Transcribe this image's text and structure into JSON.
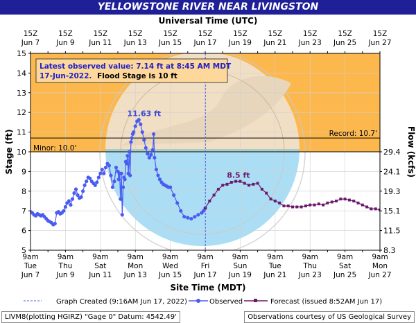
{
  "page": {
    "title": "YELLOWSTONE RIVER NEAR LIVINGSTON",
    "top_axis_title": "Universal Time (UTC)",
    "bottom_axis_title": "Site Time (MDT)",
    "left_axis_title": "Stage (ft)",
    "right_axis_title": "Flow (kcfs)",
    "footer_left": "LIVM8(plotting HGIRZ) \"Gage 0\" Datum: 4542.49'",
    "footer_right": "Observations courtesy of US Geological Survey"
  },
  "info_box": {
    "line1": "Latest observed value: 7.14 ft at 8:45 AM MDT",
    "line2_date": "17-Jun-2022.",
    "line2_rest": "Flood Stage is 10 ft"
  },
  "legend": {
    "created": "Graph Created (9:16AM Jun 17, 2022)",
    "observed": "Observed",
    "forecast": "Forecast (issued 8:52AM Jun 17)"
  },
  "colors": {
    "title_bg": "#1f1f97",
    "flood_zone": "#fdb84d",
    "observed": "#4a5cf0",
    "forecast": "#6b1a6b",
    "info_text": "#2020c8",
    "watermark_blue": "#8fd3f2"
  },
  "chart_data": {
    "type": "line",
    "x_unit": "days after Jun 7, 9am MDT",
    "xlim": [
      0,
      20
    ],
    "ylim": [
      5,
      15
    ],
    "y_ticks": [
      5,
      6,
      7,
      8,
      9,
      10,
      11,
      12,
      13,
      14,
      15
    ],
    "x_ticks_bottom": [
      {
        "x": 0,
        "time": "9am",
        "day": "Tue",
        "date": "Jun 7"
      },
      {
        "x": 2,
        "time": "9am",
        "day": "Thu",
        "date": "Jun 9"
      },
      {
        "x": 4,
        "time": "9am",
        "day": "Sat",
        "date": "Jun 11"
      },
      {
        "x": 6,
        "time": "9am",
        "day": "Mon",
        "date": "Jun 13"
      },
      {
        "x": 8,
        "time": "9am",
        "day": "Wed",
        "date": "Jun 15"
      },
      {
        "x": 10,
        "time": "9am",
        "day": "Fri",
        "date": "Jun 17"
      },
      {
        "x": 12,
        "time": "9am",
        "day": "Sun",
        "date": "Jun 19"
      },
      {
        "x": 14,
        "time": "9am",
        "day": "Tue",
        "date": "Jun 21"
      },
      {
        "x": 16,
        "time": "9am",
        "day": "Thu",
        "date": "Jun 23"
      },
      {
        "x": 18,
        "time": "9am",
        "day": "Sat",
        "date": "Jun 25"
      },
      {
        "x": 20,
        "time": "9am",
        "day": "Mon",
        "date": "Jun 27"
      }
    ],
    "x_ticks_top": [
      {
        "x": 0,
        "time": "15Z",
        "date": "Jun 7"
      },
      {
        "x": 2,
        "time": "15Z",
        "date": "Jun 9"
      },
      {
        "x": 4,
        "time": "15Z",
        "date": "Jun 11"
      },
      {
        "x": 6,
        "time": "15Z",
        "date": "Jun 13"
      },
      {
        "x": 8,
        "time": "15Z",
        "date": "Jun 15"
      },
      {
        "x": 10,
        "time": "15Z",
        "date": "Jun 17"
      },
      {
        "x": 12,
        "time": "15Z",
        "date": "Jun 19"
      },
      {
        "x": 14,
        "time": "15Z",
        "date": "Jun 21"
      },
      {
        "x": 16,
        "time": "15Z",
        "date": "Jun 23"
      },
      {
        "x": 18,
        "time": "15Z",
        "date": "Jun 25"
      },
      {
        "x": 20,
        "time": "15Z",
        "date": "Jun 27"
      }
    ],
    "flow_ticks": [
      {
        "stage": 10.0,
        "label": "29.4"
      },
      {
        "stage": 9.0,
        "label": "24.1"
      },
      {
        "stage": 8.0,
        "label": "19.3"
      },
      {
        "stage": 7.0,
        "label": "15.1"
      },
      {
        "stage": 6.0,
        "label": "11.5"
      },
      {
        "stage": 5.0,
        "label": "8.3"
      }
    ],
    "thresholds": [
      {
        "name": "Minor",
        "value": 10.0,
        "label": "Minor: 10.0'"
      },
      {
        "name": "Record",
        "value": 10.7,
        "label": "Record: 10.7'"
      }
    ],
    "annotations": [
      {
        "x": 6.5,
        "y": 11.63,
        "label": "11.63 ft",
        "series": "observed"
      },
      {
        "x": 11.9,
        "y": 8.5,
        "label": "8.5 ft",
        "series": "forecast"
      }
    ],
    "now_line_x": 10.01,
    "series": [
      {
        "name": "Observed",
        "x": [
          0.0,
          0.1,
          0.2,
          0.3,
          0.4,
          0.5,
          0.6,
          0.7,
          0.8,
          0.9,
          1.0,
          1.1,
          1.2,
          1.3,
          1.4,
          1.5,
          1.6,
          1.7,
          1.8,
          1.9,
          2.0,
          2.1,
          2.2,
          2.3,
          2.4,
          2.5,
          2.6,
          2.7,
          2.8,
          2.9,
          3.0,
          3.1,
          3.2,
          3.3,
          3.4,
          3.5,
          3.6,
          3.7,
          3.8,
          3.9,
          4.0,
          4.1,
          4.2,
          4.3,
          4.4,
          4.5,
          4.6,
          4.7,
          4.8,
          4.9,
          5.0,
          5.05,
          5.1,
          5.15,
          5.2,
          5.25,
          5.3,
          5.35,
          5.4,
          5.45,
          5.5,
          5.55,
          5.6,
          5.65,
          5.7,
          5.75,
          5.8,
          5.85,
          5.9,
          6.0,
          6.1,
          6.2,
          6.3,
          6.4,
          6.5,
          6.6,
          6.7,
          6.8,
          6.9,
          7.0,
          7.05,
          7.1,
          7.2,
          7.3,
          7.4,
          7.5,
          7.6,
          7.7,
          7.8,
          7.9,
          8.0,
          8.2,
          8.4,
          8.6,
          8.8,
          9.0,
          9.2,
          9.4,
          9.6,
          9.8,
          9.9,
          10.0
        ],
        "y": [
          6.95,
          6.9,
          6.8,
          6.75,
          6.85,
          6.8,
          6.75,
          6.8,
          6.7,
          6.6,
          6.5,
          6.45,
          6.4,
          6.3,
          6.35,
          6.9,
          6.95,
          6.85,
          6.9,
          7.0,
          7.2,
          7.4,
          7.5,
          7.3,
          7.6,
          7.9,
          8.1,
          7.8,
          7.65,
          7.7,
          8.0,
          8.3,
          8.5,
          8.7,
          8.65,
          8.5,
          8.4,
          8.3,
          8.45,
          8.7,
          8.9,
          9.1,
          8.9,
          9.2,
          9.4,
          9.3,
          8.8,
          8.2,
          8.5,
          9.2,
          9.0,
          8.6,
          8.9,
          7.6,
          8.9,
          6.8,
          8.2,
          8.7,
          8.6,
          9.5,
          9.4,
          9.8,
          8.9,
          10.0,
          8.8,
          10.5,
          10.7,
          10.9,
          11.0,
          11.3,
          11.55,
          11.63,
          11.4,
          11.0,
          10.6,
          10.2,
          9.9,
          9.7,
          9.85,
          10.1,
          10.9,
          9.7,
          9.1,
          8.8,
          8.6,
          8.45,
          8.35,
          8.3,
          8.25,
          8.2,
          8.2,
          7.8,
          7.4,
          7.0,
          6.7,
          6.65,
          6.6,
          6.7,
          6.8,
          6.9,
          7.0,
          7.14
        ]
      },
      {
        "name": "Forecast",
        "x": [
          10.0,
          10.25,
          10.5,
          10.75,
          11.0,
          11.25,
          11.5,
          11.75,
          12.0,
          12.25,
          12.5,
          12.75,
          13.0,
          13.25,
          13.5,
          13.75,
          14.0,
          14.25,
          14.5,
          14.75,
          15.0,
          15.25,
          15.5,
          15.75,
          16.0,
          16.25,
          16.5,
          16.75,
          17.0,
          17.25,
          17.5,
          17.75,
          18.0,
          18.25,
          18.5,
          18.75,
          19.0,
          19.25,
          19.5,
          19.75,
          20.0
        ],
        "y": [
          7.14,
          7.5,
          7.8,
          8.1,
          8.3,
          8.35,
          8.45,
          8.5,
          8.5,
          8.4,
          8.3,
          8.35,
          8.4,
          8.1,
          7.9,
          7.6,
          7.5,
          7.4,
          7.25,
          7.25,
          7.2,
          7.2,
          7.2,
          7.25,
          7.3,
          7.3,
          7.35,
          7.3,
          7.4,
          7.45,
          7.5,
          7.6,
          7.6,
          7.55,
          7.5,
          7.4,
          7.3,
          7.2,
          7.1,
          7.1,
          7.05
        ]
      }
    ]
  }
}
